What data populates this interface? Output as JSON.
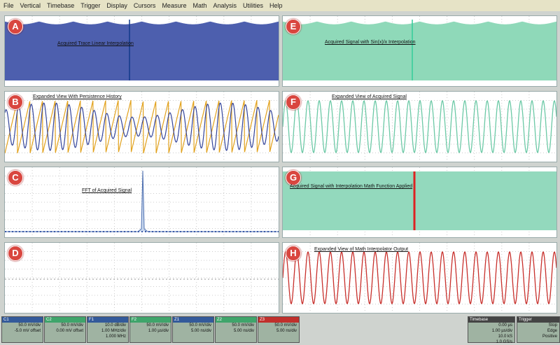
{
  "menu": [
    "File",
    "Vertical",
    "Timebase",
    "Trigger",
    "Display",
    "Cursors",
    "Measure",
    "Math",
    "Analysis",
    "Utilities",
    "Help"
  ],
  "panels": [
    {
      "label": "A",
      "annotation": "Acquired Trace Linear Interpolation"
    },
    {
      "label": "B",
      "annotation": "Expanded View With Persistence History"
    },
    {
      "label": "C",
      "annotation": "FFT of Acquired Signal"
    },
    {
      "label": "D"
    },
    {
      "label": "E",
      "annotation": "Acquired Signal with Sin(x)/x Interpolation"
    },
    {
      "label": "F",
      "annotation": "Expanded View of Acquired Signal"
    },
    {
      "label": "G",
      "annotation": "Acquired Signal with Interpolation Math Function Applied"
    },
    {
      "label": "H",
      "annotation": "Expanded View of Math Interpolator Output"
    }
  ],
  "channels": [
    {
      "name": "C1",
      "lines": [
        "50.0 mV/div",
        "-5.0 mV offset"
      ]
    },
    {
      "name": "C2",
      "lines": [
        "50.0 mV/div",
        "0.00 mV offset"
      ]
    },
    {
      "name": "F1",
      "lines": [
        "10.0 dB/div",
        "1.00 MHz/div",
        "1.000 MHz"
      ]
    },
    {
      "name": "F2",
      "lines": [
        "50.0 mV/div",
        "1.00 µs/div"
      ]
    },
    {
      "name": "Z1",
      "lines": [
        "50.0 mV/div",
        "5.00 ns/div"
      ]
    },
    {
      "name": "Z2",
      "lines": [
        "50.0 mV/div",
        "5.00 ns/div"
      ]
    },
    {
      "name": "Z3",
      "lines": [
        "50.0 mV/div",
        "5.00 ns/div"
      ]
    }
  ],
  "timebase": {
    "title": "Timebase",
    "lines": [
      "0.00 µs",
      "1.00 µs/div",
      "10.0 kS",
      "1.0 GS/s"
    ]
  },
  "trigger": {
    "title": "Trigger",
    "lines": [
      "Stop",
      "Edge",
      "Positive"
    ]
  }
}
